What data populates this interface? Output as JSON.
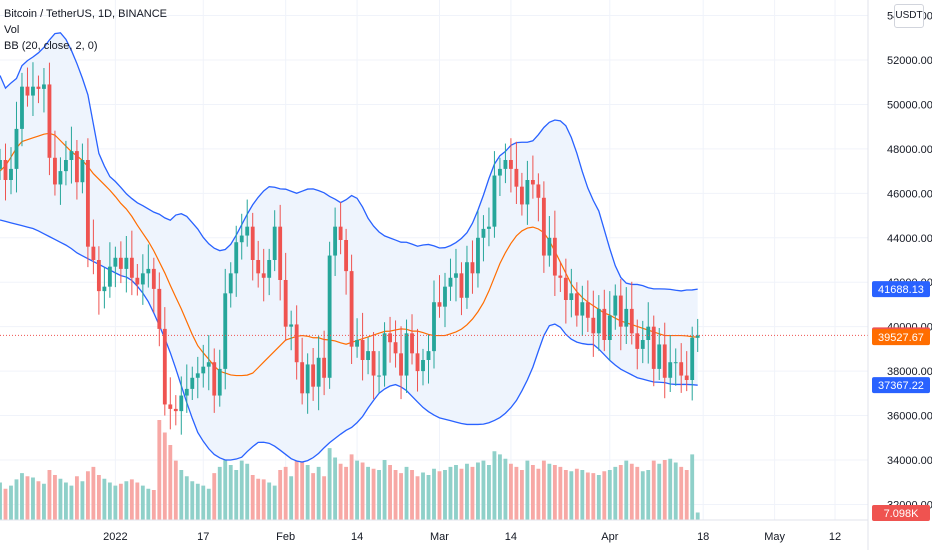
{
  "header": {
    "symbol": "Bitcoin / TetherUS, 1D, BINANCE",
    "indicator_vol": "Vol",
    "indicator_bb": "BB (20, close, 2, 0)"
  },
  "currency_button": "USDT",
  "colors": {
    "up": "#26a69a",
    "down": "#ef5350",
    "vol_up": "#8fd0c9",
    "vol_down": "#f7a8a5",
    "bb_band": "#2962ff",
    "bb_basis": "#ff6d00",
    "bb_fill": "#eef4fd",
    "last_price": "#ef5350",
    "grid": "#f0f3fa"
  },
  "chart_data": {
    "type": "candlestick",
    "y_ticks": [
      32000,
      34000,
      36000,
      38000,
      40000,
      42000,
      44000,
      46000,
      48000,
      50000,
      52000,
      54000
    ],
    "y_tick_labels": [
      "32000.00",
      "34000.00",
      "36000.00",
      "38000.00",
      "40000.00",
      "42000.00",
      "44000.00",
      "46000.00",
      "48000.00",
      "50000.00",
      "52000.00",
      "54000.00"
    ],
    "ylim": [
      31300,
      54700
    ],
    "x_labels": [
      {
        "label": "2022",
        "date": "2022-01-01"
      },
      {
        "label": "17",
        "date": "2022-01-17"
      },
      {
        "label": "Feb",
        "date": "2022-02-01"
      },
      {
        "label": "14",
        "date": "2022-02-14"
      },
      {
        "label": "Mar",
        "date": "2022-03-01"
      },
      {
        "label": "14",
        "date": "2022-03-14"
      },
      {
        "label": "Apr",
        "date": "2022-04-01"
      },
      {
        "label": "18",
        "date": "2022-04-18"
      },
      {
        "label": "May",
        "date": "2022-05-01"
      },
      {
        "label": "12",
        "date": "2022-05-12"
      }
    ],
    "x_start": "2021-12-11",
    "x_end": "2022-05-18",
    "closes": [
      47500,
      46600,
      47100,
      48900,
      50800,
      50400,
      50800,
      50700,
      50900,
      47600,
      46400,
      47000,
      47500,
      47900,
      46500,
      47500,
      43600,
      43000,
      41600,
      41800,
      42700,
      43100,
      42600,
      43100,
      42200,
      41900,
      42400,
      42600,
      41700,
      39900,
      36500,
      36300,
      36200,
      36900,
      37200,
      37700,
      37900,
      38200,
      38400,
      36900,
      38100,
      41500,
      42400,
      43800,
      44100,
      44500,
      43000,
      42400,
      42200,
      43000,
      44500,
      42100,
      40000,
      40100,
      38400,
      37000,
      38300,
      37300,
      38600,
      37700,
      43200,
      44500,
      43900,
      42500,
      39100,
      39400,
      38500,
      38900,
      37800,
      37800,
      39700,
      39300,
      38800,
      37800,
      39700,
      38800,
      38000,
      38500,
      38900,
      41100,
      40900,
      41800,
      42200,
      42400,
      41300,
      42900,
      42400,
      44000,
      44400,
      44500,
      46800,
      47100,
      47500,
      47100,
      46300,
      45500,
      46600,
      46400,
      45800,
      43200,
      44000,
      42300,
      42200,
      41200,
      41500,
      40500,
      41100,
      40400,
      39700,
      40800,
      39400,
      40500,
      41400,
      40000,
      40800,
      39700,
      39000,
      39400,
      40000,
      38100,
      39200,
      37700,
      38400,
      38400,
      37800,
      37600,
      39500,
      39607
    ],
    "volumes": [
      60,
      50,
      55,
      65,
      75,
      70,
      68,
      62,
      58,
      80,
      72,
      66,
      60,
      55,
      70,
      62,
      78,
      85,
      72,
      66,
      60,
      55,
      58,
      62,
      65,
      60,
      55,
      50,
      48,
      160,
      140,
      120,
      95,
      80,
      70,
      62,
      58,
      55,
      50,
      75,
      85,
      98,
      88,
      80,
      95,
      90,
      72,
      66,
      65,
      60,
      55,
      80,
      85,
      70,
      95,
      100,
      88,
      75,
      85,
      70,
      115,
      100,
      90,
      85,
      105,
      95,
      92,
      85,
      82,
      80,
      96,
      88,
      80,
      75,
      85,
      80,
      70,
      76,
      72,
      82,
      78,
      80,
      85,
      88,
      82,
      90,
      85,
      92,
      95,
      88,
      110,
      105,
      98,
      90,
      85,
      80,
      95,
      88,
      82,
      95,
      90,
      88,
      85,
      80,
      78,
      82,
      80,
      76,
      75,
      72,
      78,
      80,
      85,
      88,
      95,
      90,
      85,
      78,
      80,
      95,
      90,
      96,
      98,
      92,
      85,
      80,
      105,
      12
    ],
    "vol_max": 160,
    "bb_upper_approx": [
      51300,
      50700,
      51000,
      51200,
      51900,
      52000,
      52200,
      52400,
      52700,
      53100,
      53300,
      53100,
      52600,
      52000,
      51300,
      50600,
      49200,
      47800,
      47200,
      46700,
      46500,
      46200,
      45900,
      45700,
      45500,
      45400,
      45200,
      45100,
      45000,
      44700,
      45000,
      45100,
      45000,
      44700,
      44400,
      44000,
      43700,
      43500,
      43400,
      43500,
      43800,
      44300,
      44800,
      45300,
      45700,
      46000,
      46300,
      46300,
      46200,
      46200,
      46100,
      46000,
      46100,
      46200,
      46200,
      46100,
      46000,
      45800,
      45700,
      45500,
      45900,
      45900,
      45600,
      45000,
      44600,
      44300,
      44100,
      44000,
      43900,
      43800,
      43800,
      43700,
      43600,
      43700,
      43700,
      43600,
      43500,
      43600,
      43700,
      43900,
      44100,
      44500,
      45100,
      45800,
      46600,
      47300,
      47700,
      47900,
      48200,
      48300,
      48300,
      48300,
      48400,
      48800,
      49100,
      49300,
      49300,
      49200,
      48700,
      48000,
      47100,
      46300,
      45700,
      45200,
      44300,
      43400,
      42600,
      42100,
      41900,
      41900,
      41900,
      41800,
      41700,
      41700,
      41700,
      41688,
      41650,
      41600,
      41650,
      41650,
      41688
    ],
    "bb_basis_approx": [
      47000,
      47300,
      47800,
      48300,
      48400,
      48500,
      48600,
      48700,
      48700,
      48400,
      48100,
      47800,
      47600,
      47300,
      46900,
      46600,
      46300,
      46000,
      45600,
      45300,
      44900,
      44400,
      44000,
      43500,
      42900,
      42300,
      41600,
      41000,
      40300,
      39600,
      39000,
      38700,
      38300,
      38000,
      37900,
      37800,
      37800,
      37800,
      37900,
      38200,
      38500,
      38800,
      39100,
      39400,
      39500,
      39600,
      39600,
      39500,
      39500,
      39400,
      39400,
      39300,
      39200,
      39300,
      39400,
      39500,
      39600,
      39700,
      39800,
      39800,
      39900,
      39900,
      39800,
      39800,
      39700,
      39600,
      39600,
      39600,
      39700,
      39800,
      40000,
      40300,
      40700,
      41200,
      41900,
      42700,
      43300,
      43800,
      44200,
      44400,
      44500,
      44400,
      44200,
      43700,
      43100,
      42500,
      41900,
      41500,
      41200,
      41000,
      40800,
      40600,
      40500,
      40300,
      40200,
      40100,
      40000,
      39900,
      39800,
      39700,
      39600,
      39600,
      39600,
      39600,
      39550,
      39527
    ],
    "bb_lower_approx": [
      44800,
      44700,
      44600,
      44500,
      44400,
      44200,
      44000,
      43800,
      43600,
      43300,
      43100,
      42900,
      42700,
      42500,
      42300,
      42200,
      41800,
      41300,
      40500,
      39600,
      38600,
      37400,
      36200,
      35200,
      34600,
      34200,
      34000,
      34000,
      34100,
      34500,
      34800,
      34800,
      34600,
      34300,
      34000,
      33900,
      34000,
      34300,
      34700,
      35000,
      35300,
      35500,
      35900,
      36500,
      37000,
      37300,
      37400,
      37200,
      36800,
      36400,
      36100,
      35900,
      35800,
      35700,
      35600,
      35600,
      35600,
      35700,
      35900,
      36200,
      36700,
      37400,
      38300,
      39500,
      40200,
      40000,
      39500,
      39300,
      39200,
      39200,
      38800,
      38400,
      38100,
      37900,
      37700,
      37600,
      37500,
      37500,
      37400,
      37400,
      37400,
      37367
    ]
  },
  "price_labels": {
    "upper": "41688.13",
    "last": "39607.33",
    "basis": "39527.67",
    "lower": "37367.22",
    "volume": "7.098K"
  }
}
